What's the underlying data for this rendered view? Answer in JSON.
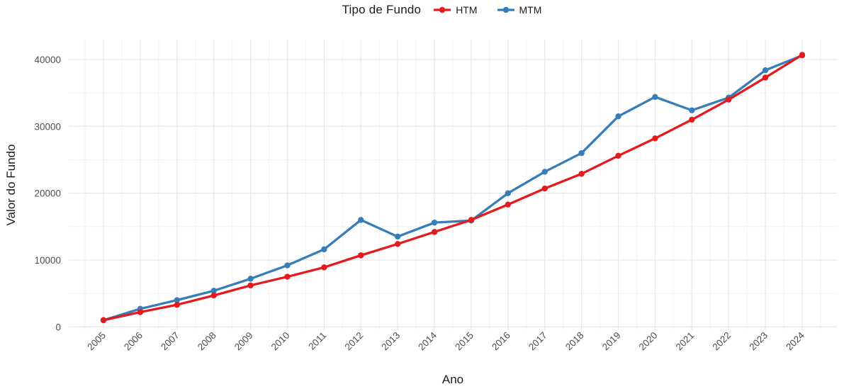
{
  "chart_data": {
    "type": "line",
    "title": "",
    "legend_title": "Tipo de Fundo",
    "legend_position": "top-center",
    "xlabel": "Ano",
    "ylabel": "Valor do Fundo",
    "x": [
      2005,
      2006,
      2007,
      2008,
      2009,
      2010,
      2011,
      2012,
      2013,
      2014,
      2015,
      2016,
      2017,
      2018,
      2019,
      2020,
      2021,
      2022,
      2023,
      2024
    ],
    "series": [
      {
        "name": "HTM",
        "color": "#E41A1C",
        "values": [
          1000,
          2200,
          3300,
          4700,
          6200,
          7500,
          8900,
          10700,
          12400,
          14200,
          16000,
          18300,
          20700,
          22900,
          25600,
          28200,
          31000,
          34000,
          37300,
          40700
        ]
      },
      {
        "name": "MTM",
        "color": "#377EB8",
        "values": [
          1000,
          2700,
          4000,
          5400,
          7200,
          9200,
          11600,
          16000,
          13500,
          15600,
          15900,
          20000,
          23200,
          26000,
          31500,
          34400,
          32400,
          34300,
          38400,
          40600
        ]
      }
    ],
    "y_ticks": [
      0,
      10000,
      20000,
      30000,
      40000
    ],
    "y_minor_ticks": [
      5000,
      15000,
      25000,
      35000
    ],
    "ylim": [
      0,
      42500
    ],
    "grid": "major+minor",
    "markers": "circle",
    "background": "#ffffff",
    "grid_color_major": "#e9e9e9",
    "grid_color_minor": "#f1f1f1",
    "axis_text_color": "#4d4d4d"
  }
}
